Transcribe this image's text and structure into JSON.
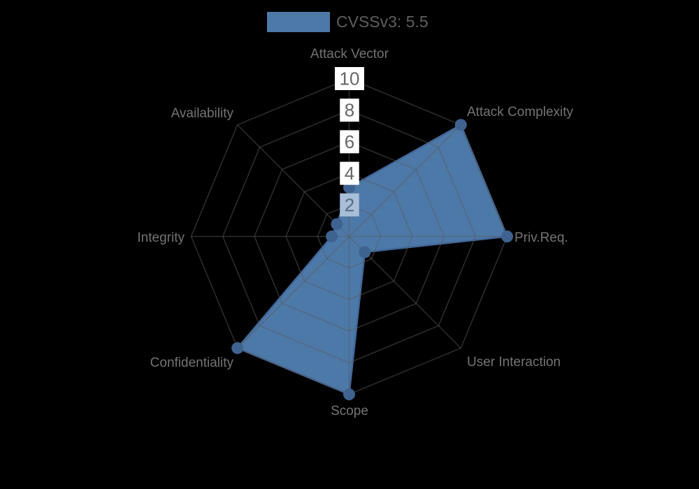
{
  "legend": {
    "label": "CVSSv3: 5.5",
    "swatch_color": "#4d79a8",
    "text_color": "#5f5f5f"
  },
  "chart_data": {
    "type": "radar",
    "categories": [
      "Attack Vector",
      "Attack Complexity",
      "Priv.Req.",
      "User Interaction",
      "Scope",
      "Confidentiality",
      "Integrity",
      "Availability"
    ],
    "series": [
      {
        "name": "CVSSv3: 5.5",
        "values": [
          3.1,
          10,
          10,
          1.4,
          10,
          10,
          1.1,
          1.1
        ]
      }
    ],
    "ticks": [
      2,
      4,
      6,
      8,
      10
    ],
    "rlim": [
      0,
      10
    ],
    "grid": true,
    "legend_position": "top-center",
    "colors": {
      "background": "#000000",
      "fill": "#4d79a8",
      "stroke": "#42689a",
      "point": "#3e6390",
      "grid_line": "rgba(90,90,90,0.5)",
      "tick_backdrop": "#ffffff",
      "tick_text": "#666666",
      "tick_backdrop_overlap": "#a9bed8",
      "tick_text_overlap": "#5a6a80",
      "axis_label": "#737373"
    }
  }
}
